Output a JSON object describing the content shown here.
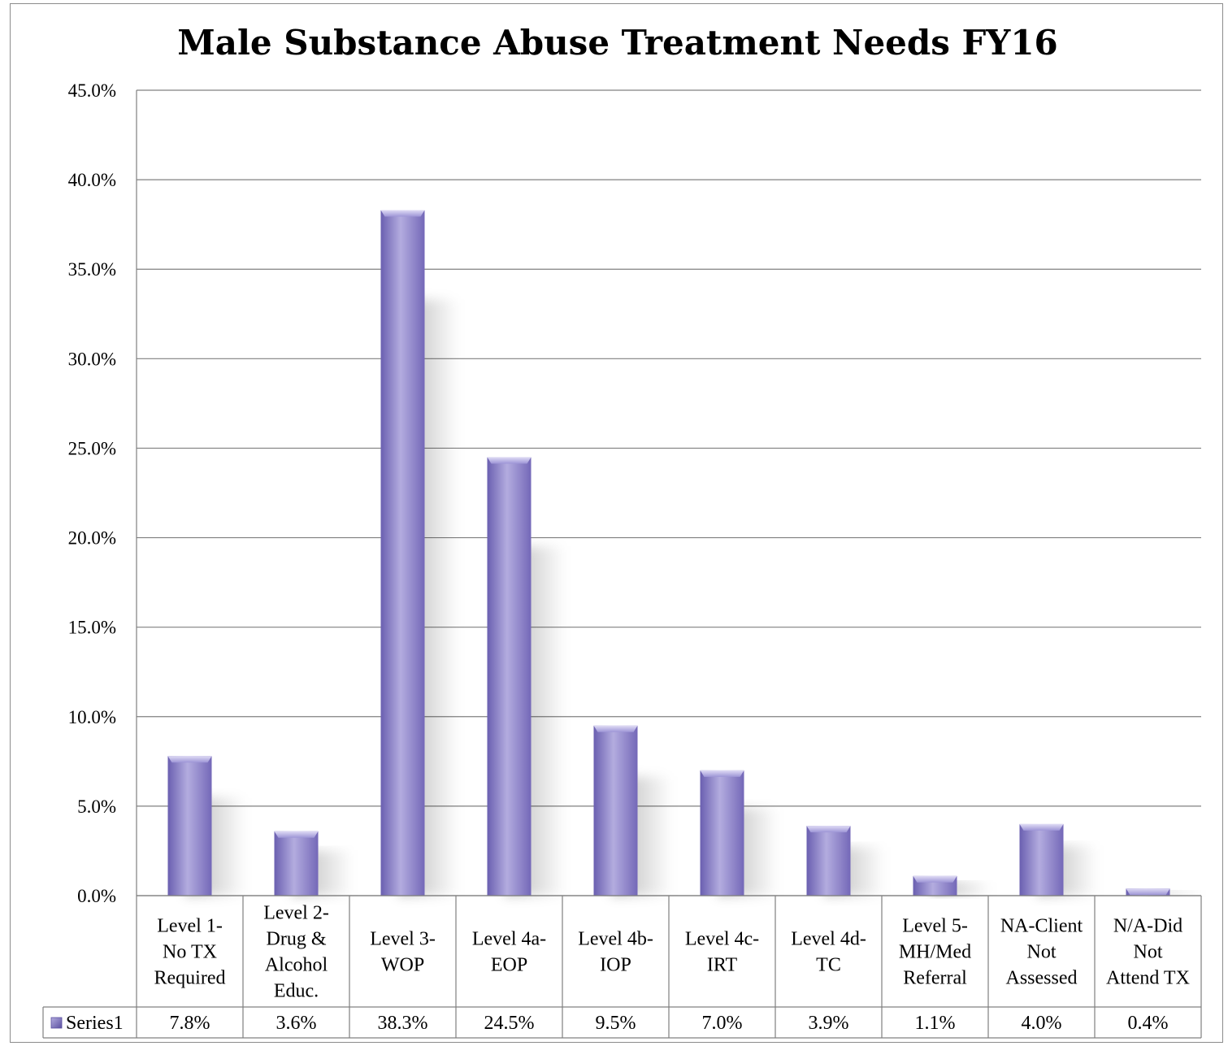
{
  "chart_data": {
    "type": "bar",
    "title": "Male Substance Abuse Treatment Needs FY16",
    "categories": [
      [
        "Level 1-",
        "No TX",
        "Required"
      ],
      [
        "Level 2-",
        "Drug &",
        "Alcohol",
        "Educ."
      ],
      [
        "Level 3-",
        "WOP"
      ],
      [
        "Level 4a-",
        "EOP"
      ],
      [
        "Level 4b-",
        "IOP"
      ],
      [
        "Level 4c-",
        "IRT"
      ],
      [
        "Level 4d-",
        "TC"
      ],
      [
        "Level 5-",
        "MH/Med",
        "Referral"
      ],
      [
        "NA-Client",
        "Not",
        "Assessed"
      ],
      [
        "N/A-Did",
        "Not",
        "Attend TX"
      ]
    ],
    "series": [
      {
        "name": "Series1",
        "values": [
          7.8,
          3.6,
          38.3,
          24.5,
          9.5,
          7.0,
          3.9,
          1.1,
          4.0,
          0.4
        ],
        "labels": [
          "7.8%",
          "3.6%",
          "38.3%",
          "24.5%",
          "9.5%",
          "7.0%",
          "3.9%",
          "1.1%",
          "4.0%",
          "0.4%"
        ]
      }
    ],
    "yticks": [
      "0.0%",
      "5.0%",
      "10.0%",
      "15.0%",
      "20.0%",
      "25.0%",
      "30.0%",
      "35.0%",
      "40.0%",
      "45.0%"
    ],
    "ylim": [
      0,
      45
    ],
    "grid": true,
    "legend": "data-table",
    "colors": {
      "bar": "#8a80cc",
      "bar_dark": "#6a5fb0",
      "bar_light": "#b3acdf",
      "grid": "#808080"
    }
  }
}
